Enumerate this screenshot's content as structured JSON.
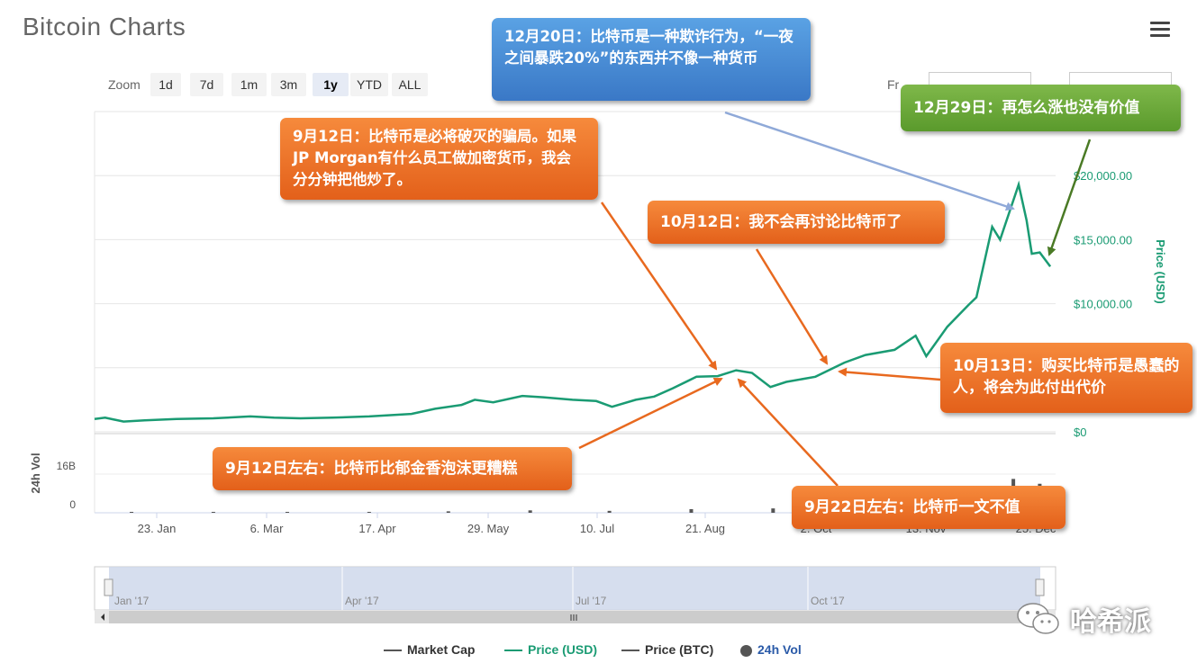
{
  "app_title": "Bitcoin Charts",
  "menu_icon": "hamburger-menu-icon",
  "zoom": {
    "label": "Zoom",
    "buttons": [
      "1d",
      "7d",
      "1m",
      "3m",
      "1y",
      "YTD",
      "ALL"
    ],
    "active": "1y"
  },
  "date_range": {
    "from_label": "Fr"
  },
  "chart_data": {
    "type": "line",
    "title": "",
    "price_axis": {
      "label": "Price (USD)",
      "ticks": [
        "$0",
        "$10,000.00",
        "$15,000.00",
        "$20,000.00"
      ],
      "ylim": [
        0,
        25000
      ]
    },
    "volume_axis": {
      "label": "24h Vol",
      "ticks": [
        "0",
        "16B"
      ]
    },
    "x_ticks": [
      "23. Jan",
      "6. Mar",
      "17. Apr",
      "29. May",
      "10. Jul",
      "21. Aug",
      "2. Oct",
      "13. Nov",
      "25. Dec"
    ],
    "navigator_ticks": [
      "Jan '17",
      "Apr '17",
      "Jul '17",
      "Oct '17"
    ],
    "series": [
      {
        "name": "Price (USD)",
        "color": "#1a9b73",
        "x": [
          "2017-01-01",
          "2017-01-05",
          "2017-01-12",
          "2017-01-20",
          "2017-02-01",
          "2017-02-15",
          "2017-03-01",
          "2017-03-10",
          "2017-03-20",
          "2017-04-01",
          "2017-04-15",
          "2017-05-01",
          "2017-05-10",
          "2017-05-20",
          "2017-05-25",
          "2017-06-01",
          "2017-06-12",
          "2017-06-20",
          "2017-07-01",
          "2017-07-10",
          "2017-07-16",
          "2017-07-25",
          "2017-08-01",
          "2017-08-08",
          "2017-08-17",
          "2017-08-25",
          "2017-09-01",
          "2017-09-07",
          "2017-09-14",
          "2017-09-20",
          "2017-10-01",
          "2017-10-12",
          "2017-10-20",
          "2017-10-31",
          "2017-11-08",
          "2017-11-12",
          "2017-11-20",
          "2017-11-28",
          "2017-12-01",
          "2017-12-07",
          "2017-12-10",
          "2017-12-17",
          "2017-12-20",
          "2017-12-22",
          "2017-12-25",
          "2017-12-29"
        ],
        "values": [
          1000,
          1100,
          800,
          900,
          1000,
          1050,
          1200,
          1100,
          1050,
          1100,
          1200,
          1400,
          1800,
          2100,
          2500,
          2300,
          2800,
          2700,
          2500,
          2400,
          1950,
          2500,
          2750,
          3400,
          4300,
          4350,
          4800,
          4600,
          3500,
          3900,
          4300,
          5400,
          6000,
          6400,
          7500,
          5900,
          8200,
          9900,
          10500,
          16000,
          15000,
          19300,
          16500,
          13900,
          14000,
          12900
        ]
      },
      {
        "name": "24h Vol",
        "color": "#555555",
        "x": [
          "2017-01",
          "2017-02",
          "2017-03",
          "2017-04",
          "2017-05",
          "2017-06",
          "2017-07",
          "2017-08",
          "2017-09",
          "2017-10",
          "2017-11",
          "2017-12-15",
          "2017-12-25"
        ],
        "values": [
          0.05,
          0.06,
          0.08,
          0.1,
          0.6,
          1.0,
          0.8,
          1.5,
          1.8,
          1.6,
          3.5,
          14,
          12
        ],
        "unit": "B"
      }
    ],
    "legend": [
      "Market Cap",
      "Price (USD)",
      "Price (BTC)",
      "24h Vol"
    ],
    "legend_colors": [
      "#555555",
      "#1a9b73",
      "#555555",
      "#555555"
    ],
    "legend_placement": "bottom"
  },
  "annotations": [
    {
      "text": "12月20日：比特币是一种欺诈行为，“一夜之间暴跌20%”的东西并不像一种货币",
      "color": "blue"
    },
    {
      "text": "12月29日：再怎么涨也没有价值",
      "color": "green"
    },
    {
      "text": "9月12日：比特币是必将破灭的骗局。如果JP Morgan有什么员工做加密货币，我会分分钟把他炒了。",
      "color": "orange"
    },
    {
      "text": "10月12日：我不会再讨论比特币了",
      "color": "orange"
    },
    {
      "text": "10月13日：购买比特币是愚蠢的人，将会为此付出代价",
      "color": "orange"
    },
    {
      "text": "9月12日左右：比特币比郁金香泡沫更糟糕",
      "color": "orange"
    },
    {
      "text": "9月22日左右：比特币一文不值",
      "color": "orange"
    }
  ],
  "watermark": {
    "text": "哈希派",
    "icon": "wechat-icon"
  },
  "colors": {
    "price": "#1a9b73",
    "volume": "#555555",
    "orange": "#e8691f",
    "blue": "#4a8ed6",
    "green": "#6ba83a"
  }
}
